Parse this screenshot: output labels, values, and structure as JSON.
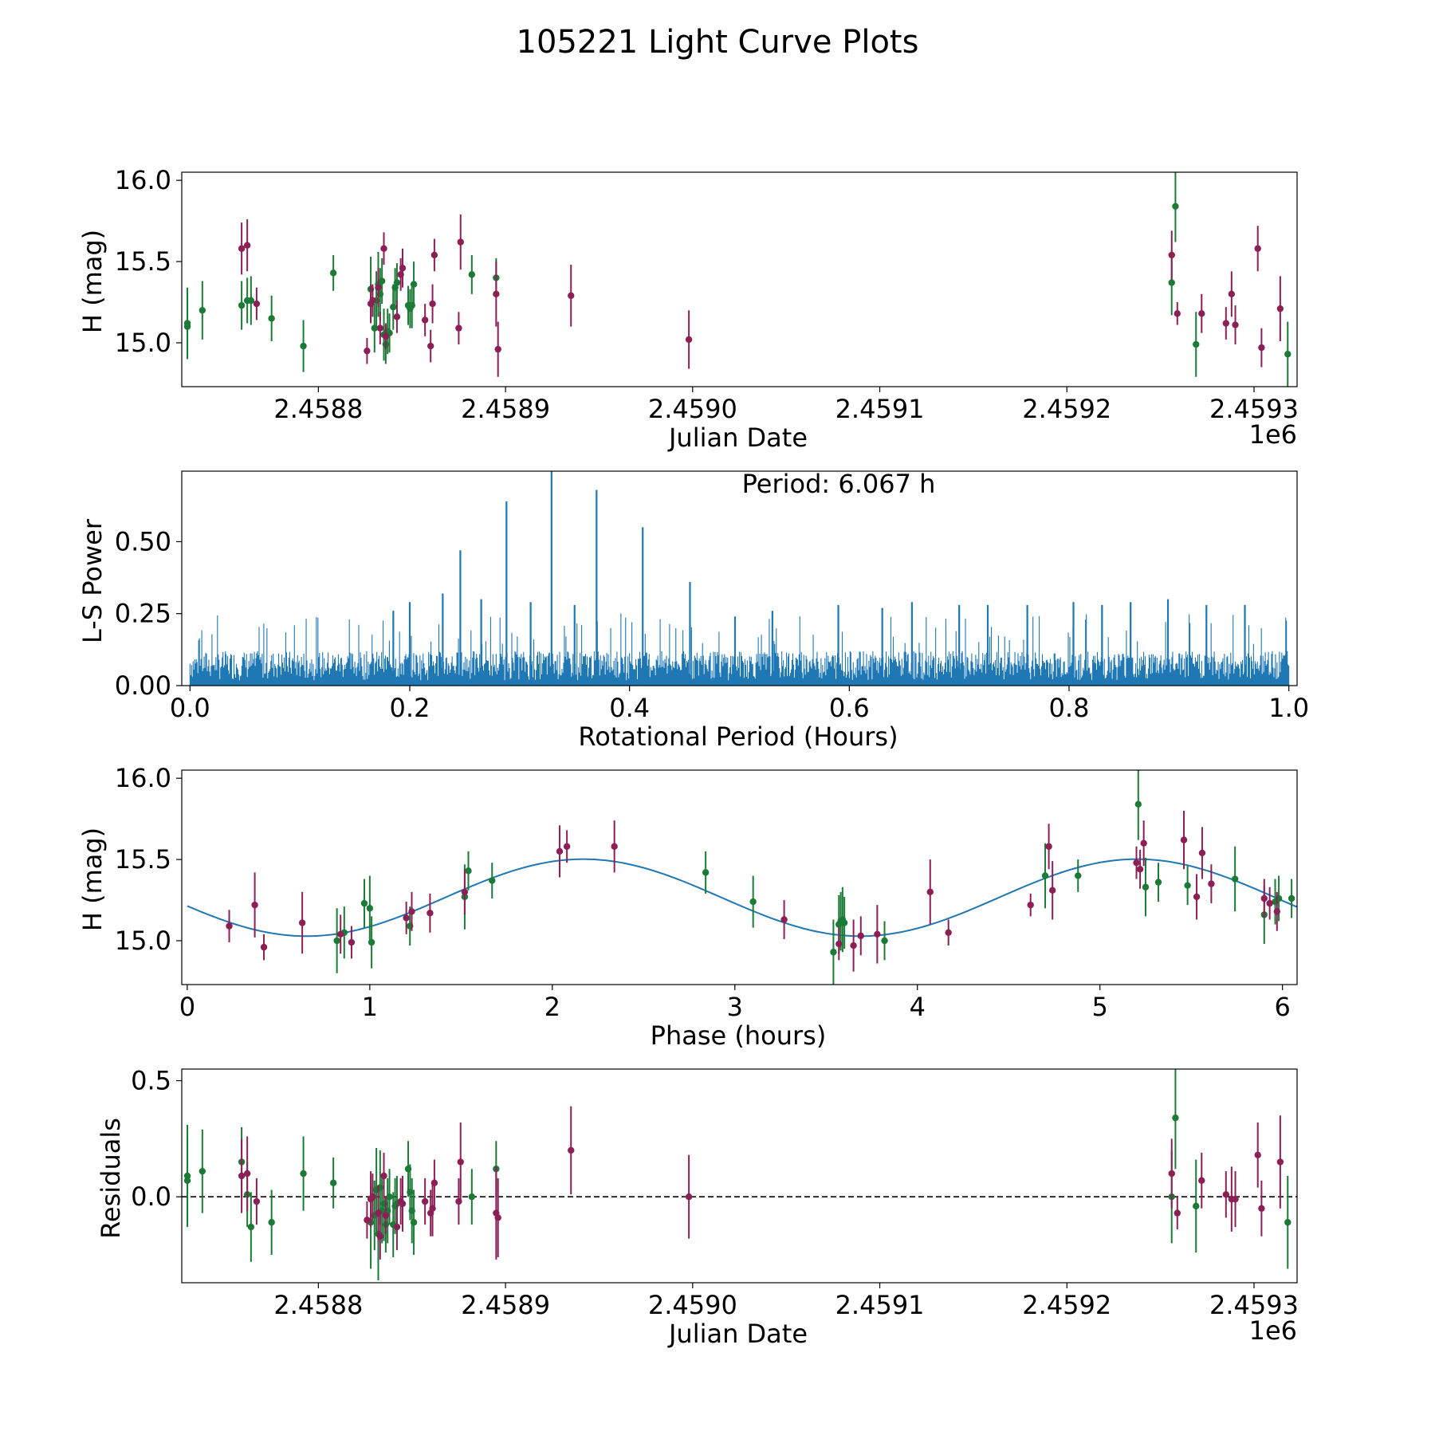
{
  "title": "105221 Light Curve Plots",
  "colors": {
    "group_a": "#1b7a36",
    "group_b": "#8c1f56",
    "curve": "#1f77b4",
    "axis": "#000000"
  },
  "chart_data": [
    {
      "id": "raw",
      "type": "scatter",
      "xlabel": "Julian Date",
      "ylabel": "H (mag)",
      "offset_label": "1e6",
      "xlim": [
        2.458727,
        2.459323
      ],
      "ylim": [
        14.73,
        16.05
      ],
      "xticks": [
        2.4588,
        2.4589,
        2.459,
        2.4591,
        2.4592,
        2.4593
      ],
      "xtick_labels": [
        "2.4588",
        "2.4589",
        "2.4590",
        "2.4591",
        "2.4592",
        "2.4593"
      ],
      "yticks": [
        15.0,
        15.5,
        16.0
      ],
      "ytick_labels": [
        "15.0",
        "15.5",
        "16.0"
      ],
      "series": [
        {
          "name": "group_a",
          "color": "#1b7a36",
          "x": [
            2.45873,
            2.45873,
            2.458738,
            2.458759,
            2.458762,
            2.458764,
            2.458775,
            2.458792,
            2.458808,
            2.458828,
            2.45883,
            2.458831,
            2.458832,
            2.458833,
            2.458834,
            2.458835,
            2.458836,
            2.458837,
            2.458838,
            2.45884,
            2.458841,
            2.458842,
            2.458848,
            2.458849,
            2.45885,
            2.458851,
            2.458882,
            2.458895,
            2.459256,
            2.459258,
            2.459269,
            2.459318
          ],
          "y": [
            15.12,
            15.1,
            15.2,
            15.23,
            15.26,
            15.26,
            15.15,
            14.98,
            15.43,
            15.33,
            15.09,
            15.26,
            15.36,
            15.3,
            15.38,
            15.05,
            14.99,
            15.07,
            15.06,
            15.22,
            15.34,
            15.37,
            15.23,
            15.21,
            15.23,
            15.36,
            15.42,
            15.4,
            15.37,
            15.84,
            14.99,
            14.93
          ],
          "err": [
            0.22,
            0.2,
            0.18,
            0.15,
            0.14,
            0.15,
            0.14,
            0.16,
            0.11,
            0.2,
            0.15,
            0.18,
            0.2,
            0.16,
            0.14,
            0.16,
            0.12,
            0.14,
            0.12,
            0.14,
            0.12,
            0.12,
            0.12,
            0.12,
            0.14,
            0.14,
            0.12,
            0.12,
            0.2,
            0.22,
            0.2,
            0.2
          ]
        },
        {
          "name": "group_b",
          "color": "#8c1f56",
          "x": [
            2.458759,
            2.458762,
            2.458767,
            2.458826,
            2.458828,
            2.458829,
            2.458832,
            2.458833,
            2.458835,
            2.458836,
            2.458842,
            2.458844,
            2.458845,
            2.458857,
            2.45886,
            2.458861,
            2.458862,
            2.458875,
            2.458876,
            2.458895,
            2.458896,
            2.458935,
            2.458998,
            2.459256,
            2.459259,
            2.459272,
            2.459285,
            2.459288,
            2.45929,
            2.459302,
            2.459304,
            2.459314
          ],
          "y": [
            15.58,
            15.6,
            15.24,
            14.95,
            15.24,
            15.26,
            15.34,
            15.09,
            15.58,
            15.04,
            15.16,
            15.42,
            15.46,
            15.14,
            14.98,
            15.24,
            15.54,
            15.09,
            15.62,
            15.3,
            14.96,
            15.29,
            15.02,
            15.54,
            15.18,
            15.18,
            15.12,
            15.3,
            15.11,
            15.58,
            14.97,
            15.21
          ],
          "err": [
            0.16,
            0.16,
            0.1,
            0.08,
            0.12,
            0.1,
            0.12,
            0.1,
            0.1,
            0.08,
            0.1,
            0.1,
            0.12,
            0.1,
            0.1,
            0.12,
            0.1,
            0.1,
            0.17,
            0.2,
            0.17,
            0.19,
            0.18,
            0.15,
            0.07,
            0.12,
            0.1,
            0.14,
            0.12,
            0.14,
            0.12,
            0.2
          ]
        }
      ]
    },
    {
      "id": "periodogram",
      "type": "line",
      "xlabel": "Rotational Period (Hours)",
      "ylabel": "L-S Power",
      "annotation": "Period: 6.067 h",
      "xlim": [
        -0.0075,
        1.0075
      ],
      "ylim": [
        0.0,
        0.745
      ],
      "xticks": [
        0.0,
        0.2,
        0.4,
        0.6,
        0.8,
        1.0
      ],
      "xtick_labels": [
        "0.0",
        "0.2",
        "0.4",
        "0.6",
        "0.8",
        "1.0"
      ],
      "yticks": [
        0.0,
        0.25,
        0.5
      ],
      "ytick_labels": [
        "0.00",
        "0.25",
        "0.50"
      ],
      "noise_level": 0.12,
      "peaks": [
        {
          "x": 0.246,
          "y": 0.47
        },
        {
          "x": 0.288,
          "y": 0.64
        },
        {
          "x": 0.329,
          "y": 0.745
        },
        {
          "x": 0.37,
          "y": 0.68
        },
        {
          "x": 0.412,
          "y": 0.55
        },
        {
          "x": 0.455,
          "y": 0.36
        },
        {
          "x": 0.2,
          "y": 0.29
        },
        {
          "x": 0.185,
          "y": 0.26
        },
        {
          "x": 0.23,
          "y": 0.32
        },
        {
          "x": 0.265,
          "y": 0.3
        },
        {
          "x": 0.31,
          "y": 0.29
        },
        {
          "x": 0.35,
          "y": 0.28
        },
        {
          "x": 0.59,
          "y": 0.28
        },
        {
          "x": 0.63,
          "y": 0.27
        },
        {
          "x": 0.657,
          "y": 0.29
        },
        {
          "x": 0.7,
          "y": 0.28
        },
        {
          "x": 0.726,
          "y": 0.28
        },
        {
          "x": 0.762,
          "y": 0.28
        },
        {
          "x": 0.804,
          "y": 0.29
        },
        {
          "x": 0.83,
          "y": 0.28
        },
        {
          "x": 0.856,
          "y": 0.29
        },
        {
          "x": 0.89,
          "y": 0.3
        },
        {
          "x": 0.925,
          "y": 0.28
        },
        {
          "x": 0.96,
          "y": 0.28
        },
        {
          "x": 0.53,
          "y": 0.26
        },
        {
          "x": 0.496,
          "y": 0.24
        }
      ]
    },
    {
      "id": "phased",
      "type": "scatter",
      "xlabel": "Phase (hours)",
      "ylabel": "H (mag)",
      "xlim": [
        -0.03,
        6.08
      ],
      "ylim": [
        14.73,
        16.05
      ],
      "xticks": [
        0,
        1,
        2,
        3,
        4,
        5,
        6
      ],
      "xtick_labels": [
        "0",
        "1",
        "2",
        "3",
        "4",
        "5",
        "6"
      ],
      "yticks": [
        15.0,
        15.5,
        16.0
      ],
      "ytick_labels": [
        "15.0",
        "15.5",
        "16.0"
      ],
      "model": {
        "mean": 15.265,
        "amplitude": 0.237,
        "period": 3.0335,
        "peak_phase": 2.17
      },
      "series": [
        {
          "name": "group_a",
          "color": "#1b7a36",
          "x": [
            0.82,
            0.86,
            0.97,
            1.0,
            1.01,
            1.22,
            1.52,
            1.54,
            1.67,
            2.84,
            3.1,
            3.54,
            3.57,
            3.58,
            3.59,
            3.6,
            3.82,
            4.7,
            4.88,
            5.21,
            5.25,
            5.32,
            5.48,
            5.74,
            5.9,
            5.96,
            5.98,
            6.05
          ],
          "y": [
            15.0,
            15.05,
            15.23,
            15.2,
            14.99,
            15.09,
            15.27,
            15.43,
            15.37,
            15.42,
            15.24,
            14.93,
            15.1,
            15.12,
            15.13,
            15.11,
            15.0,
            15.4,
            15.4,
            15.84,
            15.33,
            15.36,
            15.34,
            15.38,
            15.16,
            15.24,
            15.26,
            15.26
          ],
          "err": [
            0.2,
            0.16,
            0.15,
            0.2,
            0.16,
            0.12,
            0.2,
            0.12,
            0.11,
            0.13,
            0.16,
            0.2,
            0.18,
            0.18,
            0.2,
            0.16,
            0.12,
            0.2,
            0.1,
            0.22,
            0.18,
            0.12,
            0.12,
            0.2,
            0.18,
            0.14,
            0.14,
            0.12
          ]
        },
        {
          "name": "group_b",
          "color": "#8c1f56",
          "x": [
            0.23,
            0.37,
            0.42,
            0.63,
            0.84,
            0.9,
            1.2,
            1.23,
            1.33,
            1.52,
            2.04,
            2.08,
            2.34,
            3.27,
            3.57,
            3.65,
            3.69,
            3.78,
            4.07,
            4.17,
            4.62,
            4.72,
            4.74,
            5.2,
            5.22,
            5.24,
            5.46,
            5.53,
            5.56,
            5.61,
            5.9,
            5.93,
            5.97
          ],
          "y": [
            15.09,
            15.22,
            14.96,
            15.11,
            15.04,
            14.99,
            15.14,
            15.18,
            15.17,
            15.3,
            15.55,
            15.58,
            15.58,
            15.13,
            14.98,
            14.97,
            15.03,
            15.04,
            15.3,
            15.05,
            15.22,
            15.58,
            15.31,
            15.48,
            15.44,
            15.6,
            15.62,
            15.27,
            15.54,
            15.35,
            15.26,
            15.23,
            15.18
          ],
          "err": [
            0.1,
            0.2,
            0.08,
            0.19,
            0.12,
            0.1,
            0.1,
            0.12,
            0.12,
            0.14,
            0.16,
            0.1,
            0.16,
            0.12,
            0.1,
            0.16,
            0.12,
            0.18,
            0.2,
            0.08,
            0.07,
            0.14,
            0.18,
            0.1,
            0.12,
            0.14,
            0.18,
            0.14,
            0.16,
            0.12,
            0.12,
            0.1,
            0.12
          ]
        }
      ]
    },
    {
      "id": "residuals",
      "type": "scatter",
      "xlabel": "Julian Date",
      "ylabel": "Residuals",
      "offset_label": "1e6",
      "xlim": [
        2.458727,
        2.459323
      ],
      "ylim": [
        -0.37,
        0.55
      ],
      "xticks": [
        2.4588,
        2.4589,
        2.459,
        2.4591,
        2.4592,
        2.4593
      ],
      "xtick_labels": [
        "2.4588",
        "2.4589",
        "2.4590",
        "2.4591",
        "2.4592",
        "2.4593"
      ],
      "yticks": [
        0.0,
        0.5
      ],
      "ytick_labels": [
        "0.0",
        "0.5"
      ],
      "reference_line": 0.0,
      "series": [
        {
          "name": "group_a",
          "color": "#1b7a36",
          "x": [
            2.45873,
            2.45873,
            2.458738,
            2.458759,
            2.458762,
            2.458764,
            2.458775,
            2.458792,
            2.458808,
            2.458828,
            2.45883,
            2.458831,
            2.458832,
            2.458833,
            2.458834,
            2.458835,
            2.458836,
            2.458837,
            2.458838,
            2.45884,
            2.458841,
            2.458842,
            2.458848,
            2.458849,
            2.45885,
            2.458851,
            2.458882,
            2.458895,
            2.459256,
            2.459258,
            2.459269,
            2.459318
          ],
          "y": [
            0.09,
            0.07,
            0.11,
            0.15,
            0.01,
            -0.13,
            -0.11,
            0.1,
            0.06,
            -0.11,
            -0.08,
            0.03,
            -0.16,
            0.04,
            -0.06,
            -0.03,
            -0.12,
            -0.06,
            0.0,
            -0.12,
            -0.04,
            -0.03,
            0.12,
            0.02,
            -0.06,
            -0.11,
            0.0,
            0.12,
            0.0,
            0.34,
            -0.04,
            -0.11
          ],
          "err": [
            0.22,
            0.18,
            0.18,
            0.15,
            0.14,
            0.15,
            0.14,
            0.16,
            0.11,
            0.2,
            0.15,
            0.18,
            0.2,
            0.16,
            0.14,
            0.16,
            0.12,
            0.14,
            0.12,
            0.14,
            0.12,
            0.12,
            0.12,
            0.12,
            0.14,
            0.14,
            0.12,
            0.12,
            0.2,
            0.22,
            0.2,
            0.2
          ]
        },
        {
          "name": "group_b",
          "color": "#8c1f56",
          "x": [
            2.458759,
            2.458762,
            2.458767,
            2.458826,
            2.458828,
            2.458829,
            2.458832,
            2.458833,
            2.458835,
            2.458836,
            2.458842,
            2.458844,
            2.458845,
            2.458857,
            2.45886,
            2.458861,
            2.458862,
            2.458875,
            2.458876,
            2.458895,
            2.458896,
            2.458935,
            2.458998,
            2.459256,
            2.459259,
            2.459272,
            2.459285,
            2.459288,
            2.45929,
            2.459302,
            2.459304,
            2.459314
          ],
          "y": [
            0.09,
            0.1,
            -0.02,
            -0.1,
            -0.01,
            0.0,
            -0.07,
            -0.17,
            0.09,
            -0.08,
            -0.13,
            -0.02,
            -0.03,
            -0.02,
            -0.07,
            -0.05,
            0.06,
            -0.02,
            0.15,
            -0.07,
            -0.09,
            0.2,
            0.0,
            0.1,
            -0.07,
            0.07,
            0.01,
            -0.01,
            -0.01,
            0.18,
            -0.05,
            0.15
          ],
          "err": [
            0.16,
            0.16,
            0.1,
            0.08,
            0.12,
            0.1,
            0.12,
            0.1,
            0.1,
            0.08,
            0.1,
            0.1,
            0.12,
            0.1,
            0.1,
            0.12,
            0.1,
            0.1,
            0.17,
            0.2,
            0.17,
            0.19,
            0.18,
            0.15,
            0.07,
            0.12,
            0.1,
            0.14,
            0.12,
            0.14,
            0.12,
            0.2
          ]
        }
      ]
    }
  ]
}
